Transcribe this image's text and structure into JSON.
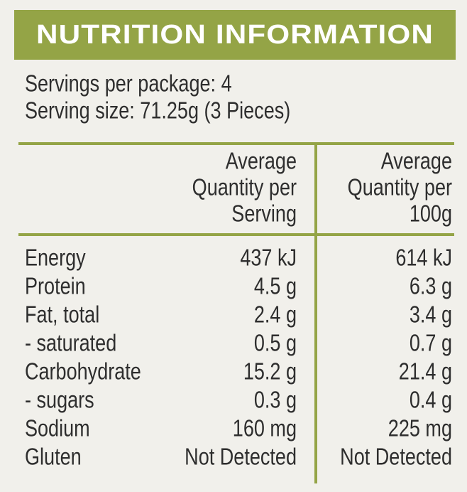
{
  "header": {
    "title": "NUTRITION INFORMATION"
  },
  "servings": [
    "Servings per package: 4",
    "Serving size: 71.25g (3 Pieces)"
  ],
  "table": {
    "columns": [
      [
        "Average",
        "Quantity per",
        "Serving"
      ],
      [
        "Average",
        "Quantity per",
        "100g"
      ]
    ],
    "rows": [
      [
        "Energy",
        "437 kJ",
        "614 kJ"
      ],
      [
        "Protein",
        "4.5 g",
        "6.3 g"
      ],
      [
        "Fat, total",
        "2.4 g",
        "3.4 g"
      ],
      [
        "- saturated",
        "0.5 g",
        "0.7 g"
      ],
      [
        "Carbohydrate",
        "15.2 g",
        "21.4 g"
      ],
      [
        "- sugars",
        "0.3 g",
        "0.4 g"
      ],
      [
        "Sodium",
        "160 mg",
        "225 mg"
      ],
      [
        "Gluten",
        "Not Detected",
        "Not Detected"
      ]
    ]
  }
}
